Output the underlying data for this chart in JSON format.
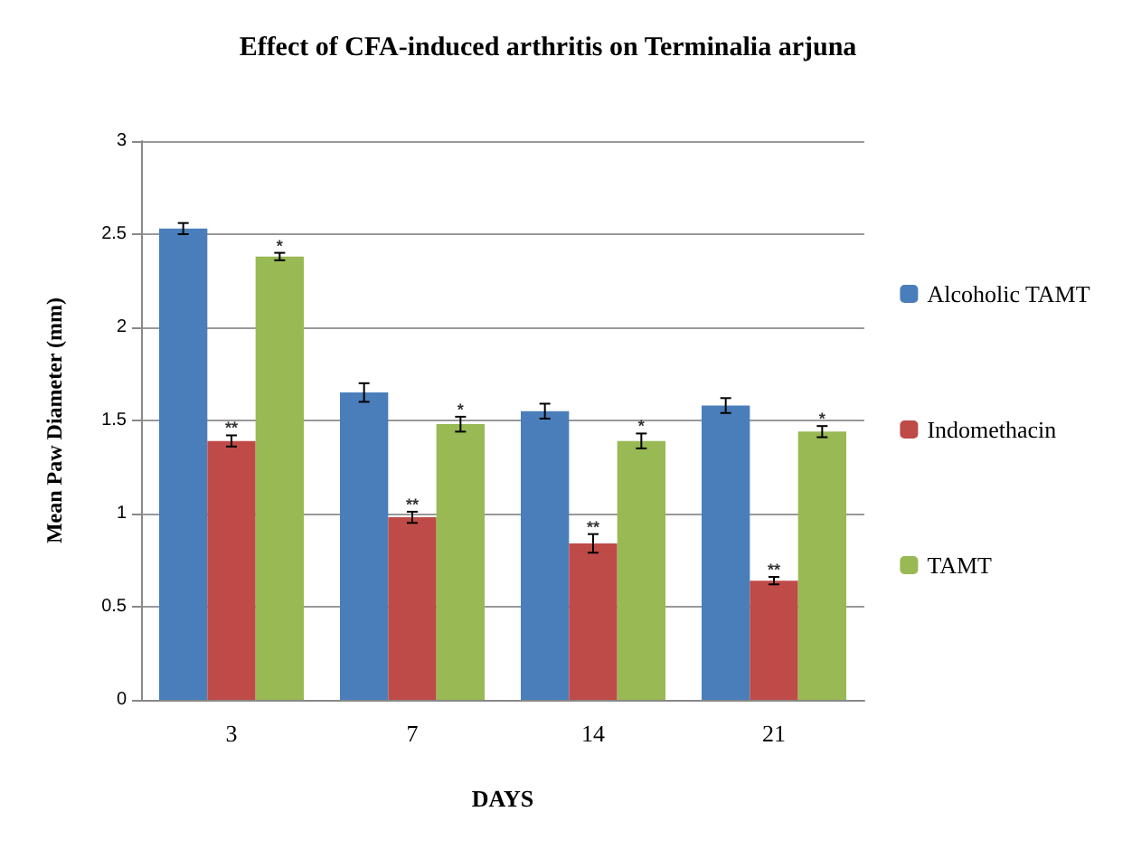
{
  "chart_data": {
    "type": "bar",
    "title": "Effect of CFA-induced arthritis on Terminalia arjuna",
    "xlabel": "DAYS",
    "ylabel": "Mean Paw Diameter (mm)",
    "categories": [
      "3",
      "7",
      "14",
      "21"
    ],
    "series": [
      {
        "name": "Alcoholic TAMT",
        "color": "#4a7ebb",
        "values": [
          2.53,
          1.65,
          1.55,
          1.58
        ],
        "errors": [
          0.03,
          0.05,
          0.04,
          0.04
        ]
      },
      {
        "name": "Indomethacin",
        "color": "#be4b48",
        "values": [
          1.39,
          0.98,
          0.84,
          0.64
        ],
        "errors": [
          0.03,
          0.03,
          0.05,
          0.02
        ],
        "value_labels": [
          "**",
          "**",
          "**",
          "**"
        ]
      },
      {
        "name": "TAMT",
        "color": "#98b954",
        "values": [
          2.38,
          1.48,
          1.39,
          1.44
        ],
        "errors": [
          0.02,
          0.04,
          0.04,
          0.03
        ],
        "value_labels": [
          "*",
          "*",
          "*",
          "*"
        ]
      }
    ],
    "ylim": [
      0,
      3
    ],
    "yticks": [
      0,
      0.5,
      1,
      1.5,
      2,
      2.5,
      3
    ],
    "grid": "y",
    "legend": "right"
  }
}
